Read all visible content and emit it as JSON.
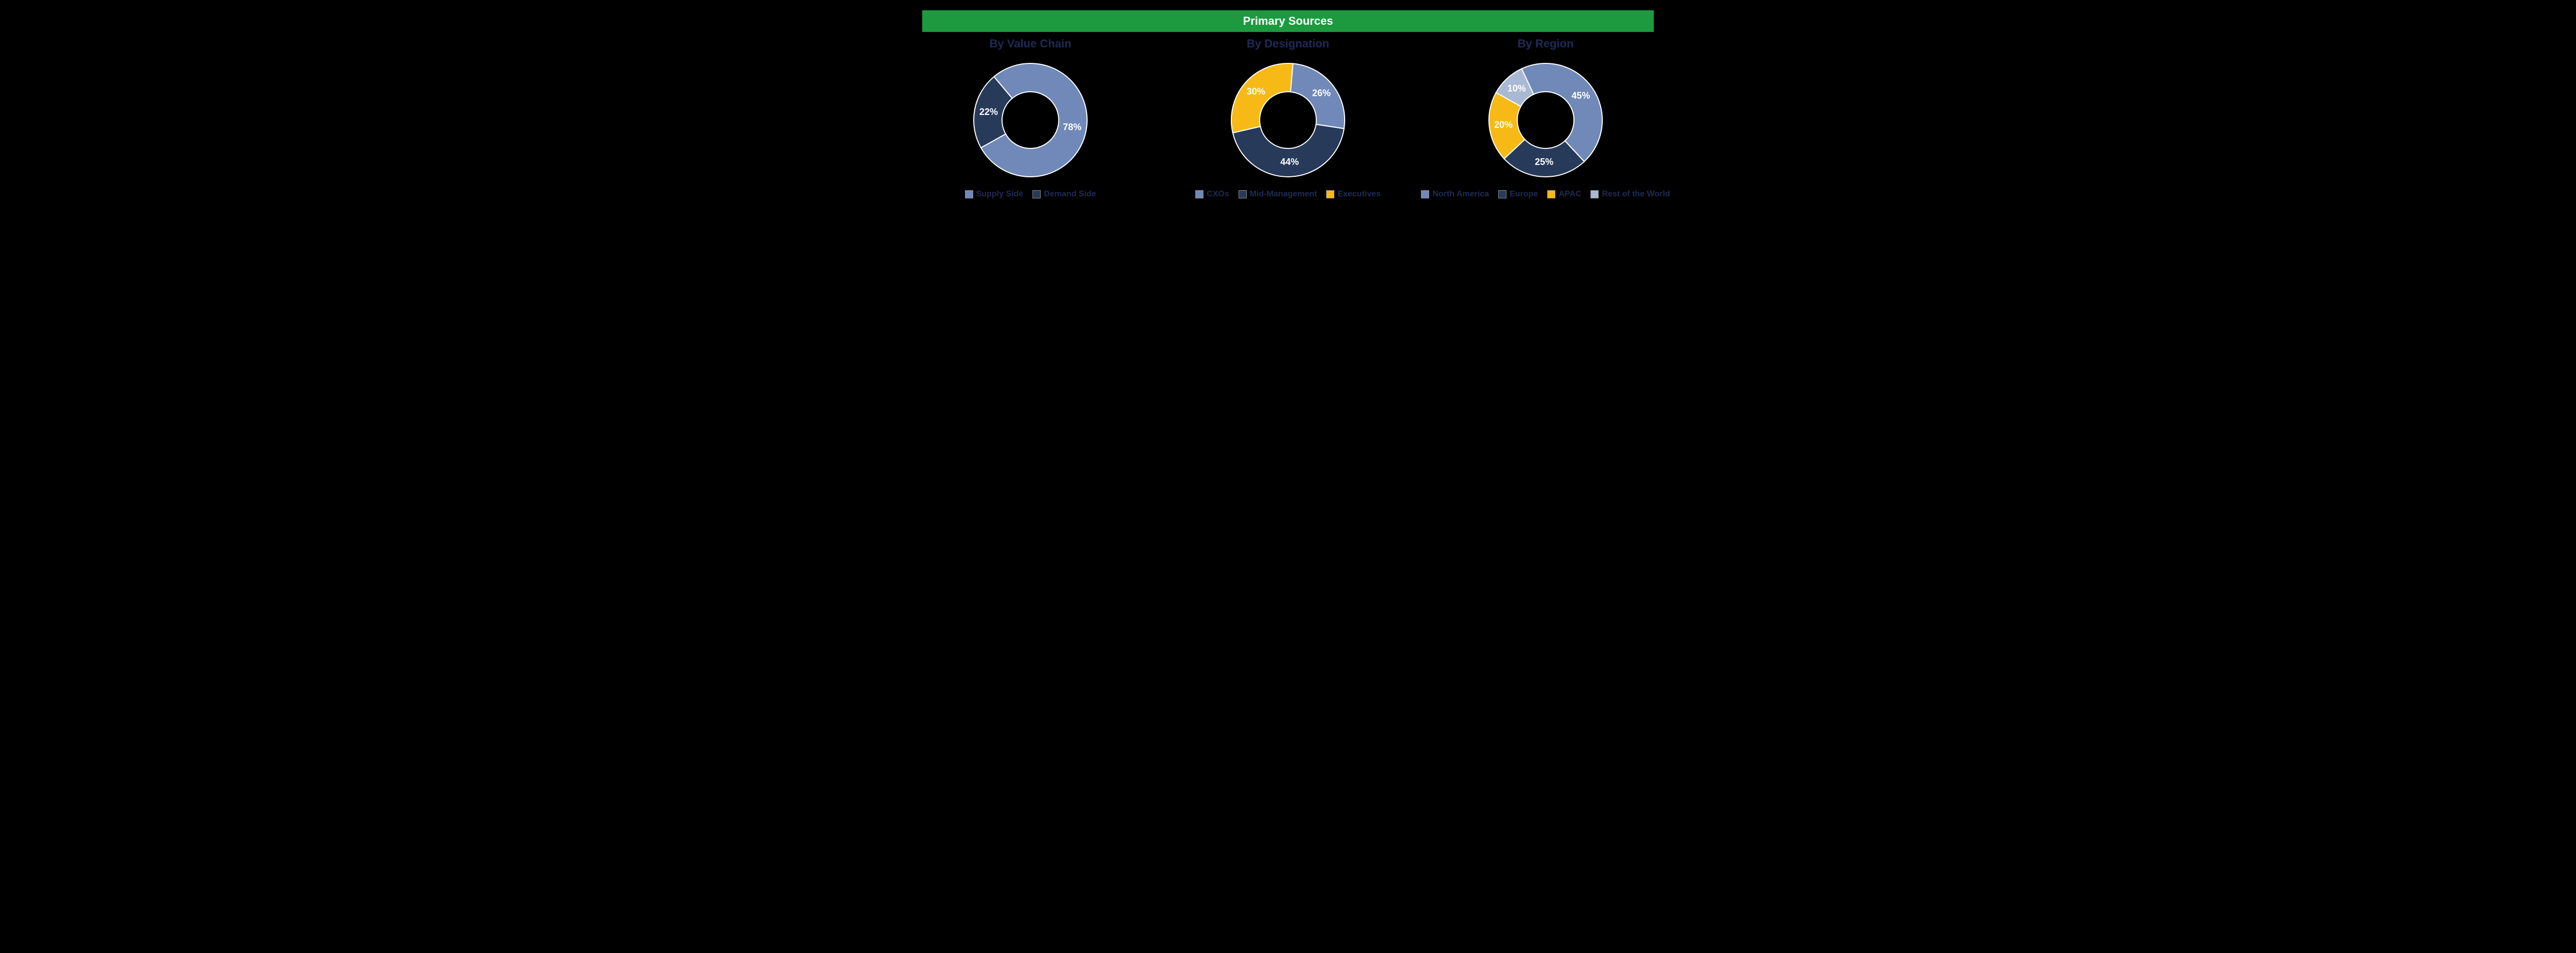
{
  "header": {
    "title": "Primary Sources",
    "bg_color": "#1d9a3f",
    "text_color": "#ffffff"
  },
  "title_color": "#1f2b55",
  "legend_text_color": "#1f2b55",
  "donut": {
    "outer_r": 110,
    "inner_r": 55,
    "stroke": "#ffffff",
    "stroke_width": 2,
    "label_fontsize": 18,
    "label_color": "#ffffff"
  },
  "charts": [
    {
      "title": "By Value Chain",
      "start_angle": -40,
      "slices": [
        {
          "name": "Supply Side",
          "value": 78,
          "color": "#7089b8"
        },
        {
          "name": "Demand Side",
          "value": 22,
          "color": "#273a5a"
        }
      ]
    },
    {
      "title": "By Designation",
      "start_angle": 5,
      "slices": [
        {
          "name": "CXOs",
          "value": 26,
          "color": "#7089b8"
        },
        {
          "name": "Mid-Management",
          "value": 44,
          "color": "#273a5a"
        },
        {
          "name": "Executives",
          "value": 30,
          "color": "#f7b915"
        }
      ]
    },
    {
      "title": "By Region",
      "start_angle": -25,
      "slices": [
        {
          "name": "North America",
          "value": 45,
          "color": "#7089b8"
        },
        {
          "name": "Europe",
          "value": 25,
          "color": "#273a5a"
        },
        {
          "name": "APAC",
          "value": 20,
          "color": "#f7b915"
        },
        {
          "name": "Rest of the World",
          "value": 10,
          "color": "#a9b9d4"
        }
      ]
    }
  ]
}
